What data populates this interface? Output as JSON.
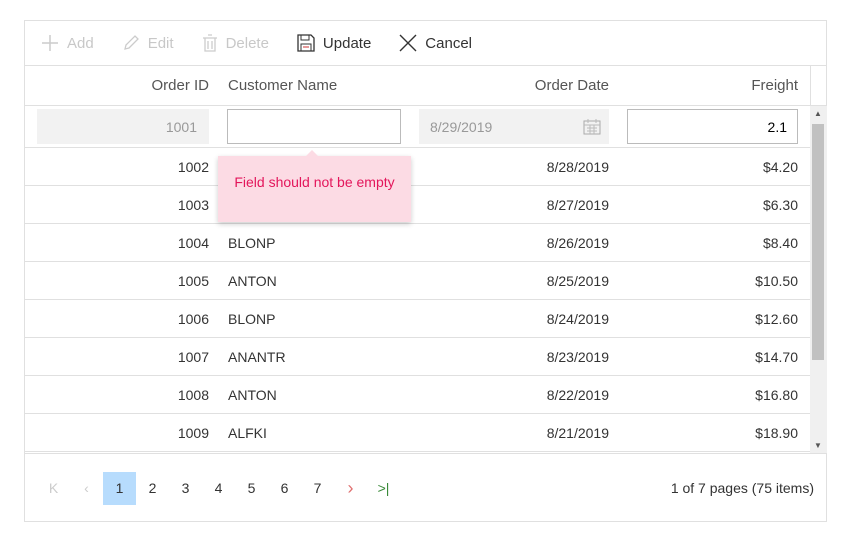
{
  "toolbar": {
    "add": "Add",
    "edit": "Edit",
    "delete": "Delete",
    "update": "Update",
    "cancel": "Cancel"
  },
  "columns": [
    "Order ID",
    "Customer Name",
    "Order Date",
    "Freight"
  ],
  "edit_row": {
    "order_id": "1001",
    "customer_name": "",
    "order_date": "8/29/2019",
    "freight": "2.1"
  },
  "validation_message": "Field should not be empty",
  "rows": [
    {
      "id": "1002",
      "name": "",
      "date": "8/28/2019",
      "freight": "$4.20"
    },
    {
      "id": "1003",
      "name": "",
      "date": "8/27/2019",
      "freight": "$6.30"
    },
    {
      "id": "1004",
      "name": "BLONP",
      "date": "8/26/2019",
      "freight": "$8.40"
    },
    {
      "id": "1005",
      "name": "ANTON",
      "date": "8/25/2019",
      "freight": "$10.50"
    },
    {
      "id": "1006",
      "name": "BLONP",
      "date": "8/24/2019",
      "freight": "$12.60"
    },
    {
      "id": "1007",
      "name": "ANANTR",
      "date": "8/23/2019",
      "freight": "$14.70"
    },
    {
      "id": "1008",
      "name": "ANTON",
      "date": "8/22/2019",
      "freight": "$16.80"
    },
    {
      "id": "1009",
      "name": "ALFKI",
      "date": "8/21/2019",
      "freight": "$18.90"
    }
  ],
  "pager": {
    "pages": [
      "1",
      "2",
      "3",
      "4",
      "5",
      "6",
      "7"
    ],
    "current": "1",
    "info": "1 of 7 pages (75 items)"
  },
  "colors": {
    "accent": "#b7dcfd",
    "error_text": "#e3165b",
    "error_bg": "#fcdbe4"
  }
}
